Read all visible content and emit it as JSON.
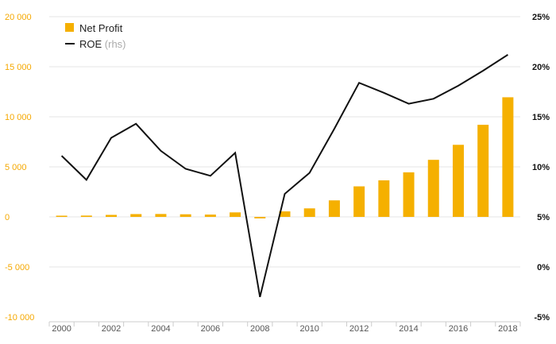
{
  "chart_data": {
    "type": "bar",
    "categories": [
      "2000",
      "2001",
      "2002",
      "2003",
      "2004",
      "2005",
      "2006",
      "2007",
      "2008",
      "2009",
      "2010",
      "2011",
      "2012",
      "2013",
      "2014",
      "2015",
      "2016",
      "2017",
      "2018"
    ],
    "x_tick_labels": [
      "2000",
      "2002",
      "2004",
      "2006",
      "2008",
      "2010",
      "2012",
      "2014",
      "2016",
      "2018"
    ],
    "series": [
      {
        "name": "Net Profit",
        "type": "bar",
        "axis": "left",
        "color": "#f5b000",
        "values": [
          120,
          130,
          200,
          280,
          290,
          260,
          230,
          450,
          -150,
          550,
          850,
          1650,
          3050,
          3650,
          4450,
          5700,
          7200,
          9200,
          11950
        ]
      },
      {
        "name": "ROE",
        "name_suffix": "(rhs)",
        "type": "line",
        "axis": "right",
        "color": "#111111",
        "values": [
          11.1,
          8.7,
          12.9,
          14.3,
          11.6,
          9.8,
          9.1,
          11.4,
          -3.0,
          7.3,
          9.4,
          13.8,
          18.4,
          17.4,
          16.3,
          16.8,
          18.1,
          19.6,
          21.2
        ]
      }
    ],
    "y_left": {
      "ylim": [
        -10000,
        20000
      ],
      "ticks": [
        20000,
        15000,
        10000,
        5000,
        0,
        -5000,
        -10000
      ],
      "tick_labels": [
        "20 000",
        "15 000",
        "10 000",
        "5 000",
        "0",
        "-5 000",
        "-10 000"
      ]
    },
    "y_right": {
      "ylim": [
        -5,
        25
      ],
      "ticks": [
        25,
        20,
        15,
        10,
        5,
        0,
        -5
      ],
      "tick_labels": [
        "25%",
        "20%",
        "15%",
        "10%",
        "5%",
        "0%",
        "-5%"
      ]
    },
    "grid": true,
    "legend": {
      "placement": "top-left",
      "items": [
        {
          "label": "Net Profit",
          "sub": "",
          "color": "#f5b000",
          "kind": "bar"
        },
        {
          "label": "ROE",
          "sub": "(rhs)",
          "color": "#111111",
          "kind": "line"
        }
      ]
    }
  }
}
